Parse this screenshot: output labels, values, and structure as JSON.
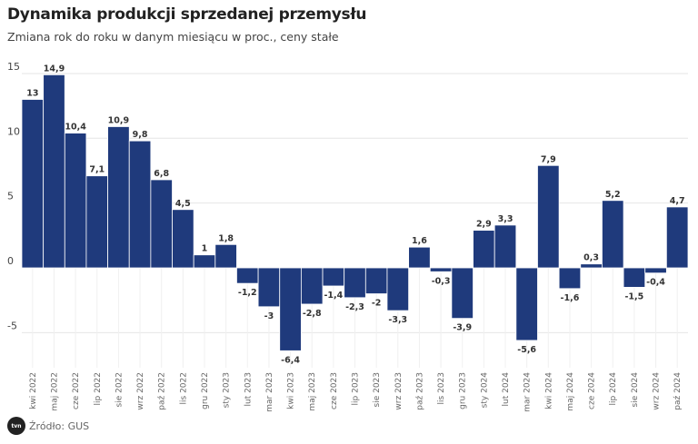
{
  "header": {
    "title": "Dynamika produkcji sprzedanej przemysłu",
    "subtitle": "Zmiana rok do roku w danym miesiącu w proc., ceny stałe"
  },
  "footer": {
    "source": "Źródło: GUS",
    "logo_text": "tvn24"
  },
  "colors": {
    "bar": "#1f3a7c",
    "grid": "#e6e6e6",
    "label": "#333333"
  },
  "chart_data": {
    "type": "bar",
    "title": "Dynamika produkcji sprzedanej przemysłu",
    "subtitle": "Zmiana rok do roku w danym miesiącu w proc., ceny stałe",
    "categories": [
      "kwi 2022",
      "maj 2022",
      "cze 2022",
      "lip 2022",
      "sie 2022",
      "wrz 2022",
      "paź 2022",
      "lis 2022",
      "gru 2022",
      "sty 2023",
      "lut 2023",
      "mar 2023",
      "kwi 2023",
      "maj 2023",
      "cze 2023",
      "lip 2023",
      "sie 2023",
      "wrz 2023",
      "paź 2023",
      "lis 2023",
      "gru 2023",
      "sty 2024",
      "lut 2024",
      "mar 2024",
      "kwi 2024",
      "maj 2024",
      "cze 2024",
      "lip 2024",
      "sie 2024",
      "wrz 2024",
      "paź 2024"
    ],
    "values": [
      13,
      14.9,
      10.4,
      7.1,
      10.9,
      9.8,
      6.8,
      4.5,
      1,
      1.8,
      -1.2,
      -3,
      -6.4,
      -2.8,
      -1.4,
      -2.3,
      -2,
      -3.3,
      1.6,
      -0.3,
      -3.9,
      2.9,
      3.3,
      -5.6,
      7.9,
      -1.6,
      0.3,
      5.2,
      -1.5,
      -0.4,
      4.7
    ],
    "labels": [
      "13",
      "14,9",
      "10,4",
      "7,1",
      "10,9",
      "9,8",
      "6,8",
      "4,5",
      "1",
      "1,8",
      "-1,2",
      "-3",
      "-6,4",
      "-2,8",
      "-1,4",
      "-2,3",
      "-2",
      "-3,3",
      "1,6",
      "-0,3",
      "-3,9",
      "2,9",
      "3,3",
      "-5,6",
      "7,9",
      "-1,6",
      "0,3",
      "5,2",
      "-1,5",
      "-0,4",
      "4,7"
    ],
    "yticks": [
      15,
      10,
      5,
      0,
      -5
    ],
    "ytick_labels": [
      "15",
      "10",
      "5",
      "0",
      "-5"
    ],
    "ylim": [
      -7.7,
      15.5
    ],
    "grid": true,
    "xlabel": "",
    "ylabel": ""
  }
}
